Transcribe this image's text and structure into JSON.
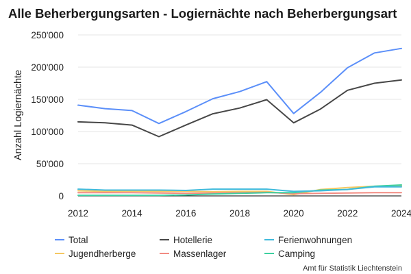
{
  "chart_data": {
    "type": "line",
    "title": "Alle Beherbergungsarten - Logiernächte nach Beherbergungsart",
    "xlabel": "",
    "ylabel": "Anzahl Logiernächte",
    "x": [
      2012,
      2013,
      2014,
      2015,
      2016,
      2017,
      2018,
      2019,
      2020,
      2021,
      2022,
      2023,
      2024
    ],
    "x_ticks": [
      "2012",
      "2014",
      "2016",
      "2018",
      "2020",
      "2022",
      "2024"
    ],
    "y_ticks": [
      "0",
      "50'000",
      "100'000",
      "150'000",
      "200'000",
      "250'000"
    ],
    "ylim": [
      0,
      250000
    ],
    "grid": true,
    "legend_position": "bottom",
    "series": [
      {
        "name": "Total",
        "color": "#5b8ff9",
        "values": [
          141000,
          135500,
          132500,
          112500,
          131000,
          151000,
          162000,
          177500,
          128000,
          161000,
          199000,
          222000,
          229000
        ]
      },
      {
        "name": "Hotellerie",
        "color": "#474747",
        "values": [
          115000,
          113500,
          110000,
          92000,
          110000,
          127500,
          136500,
          149500,
          113500,
          135000,
          164000,
          175000,
          180000
        ]
      },
      {
        "name": "Ferienwohnungen",
        "color": "#3fbadc",
        "values": [
          10500,
          9000,
          9000,
          9000,
          8500,
          10500,
          10500,
          10500,
          7000,
          8000,
          10000,
          14000,
          14000
        ]
      },
      {
        "name": "Jugendherberge",
        "color": "#f5c862",
        "values": [
          8000,
          7000,
          7500,
          7000,
          7000,
          6500,
          7000,
          7000,
          2000,
          10000,
          13000,
          15000,
          16000
        ]
      },
      {
        "name": "Massenlager",
        "color": "#f28b82",
        "values": [
          5000,
          5000,
          5000,
          4500,
          4000,
          4500,
          5000,
          5500,
          3500,
          4000,
          4500,
          5000,
          5000
        ]
      },
      {
        "name": "Camping",
        "color": "#3dd0a0",
        "values": [
          1000,
          1000,
          1000,
          1000,
          1500,
          3000,
          4000,
          5000,
          5000,
          9000,
          10000,
          15000,
          17000
        ]
      }
    ],
    "source": "Amt für Statistik Liechtenstein"
  }
}
